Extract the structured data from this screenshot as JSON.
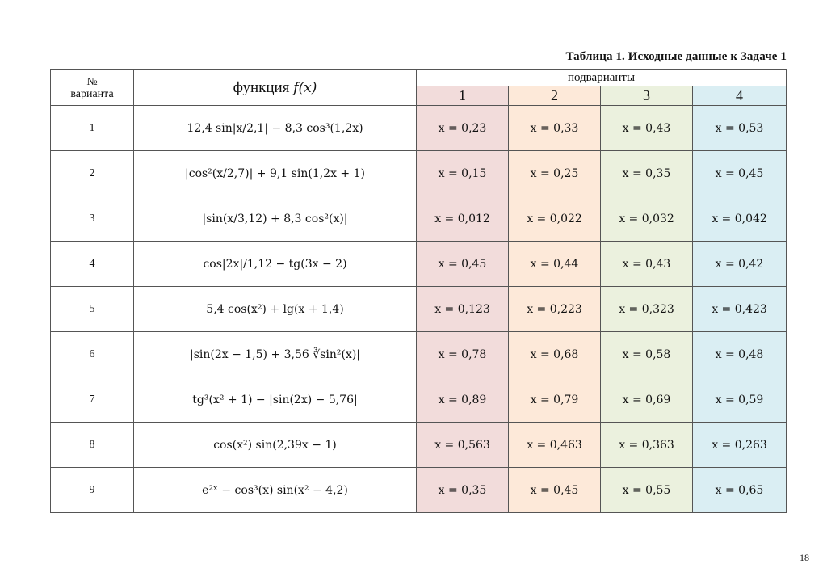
{
  "caption": "Таблица 1. Исходные данные к Задаче 1",
  "header": {
    "variant_symbol": "№",
    "variant_label": "варианта",
    "function_label": "функция",
    "function_symbol": "f(x)",
    "subvariants_label": "подварианты",
    "subvariant_numbers": [
      "1",
      "2",
      "3",
      "4"
    ]
  },
  "colors": {
    "col1": "#f2dcdb",
    "col2": "#fde9d9",
    "col3": "#ebf1de",
    "col4": "#daeef3"
  },
  "rows": [
    {
      "n": "1",
      "f": "12,4 sin|x/2,1| − 8,3 cos³(1,2x)",
      "v": [
        "x = 0,23",
        "x = 0,33",
        "x = 0,43",
        "x = 0,53"
      ]
    },
    {
      "n": "2",
      "f": "|cos²(x/2,7)| + 9,1 sin(1,2x + 1)",
      "v": [
        "x = 0,15",
        "x = 0,25",
        "x = 0,35",
        "x = 0,45"
      ]
    },
    {
      "n": "3",
      "f": "|sin(x/3,12) + 8,3 cos²(x)|",
      "v": [
        "x = 0,012",
        "x = 0,022",
        "x = 0,032",
        "x = 0,042"
      ]
    },
    {
      "n": "4",
      "f": "cos|2x|/1,12 − tg(3x − 2)",
      "v": [
        "x = 0,45",
        "x = 0,44",
        "x = 0,43",
        "x = 0,42"
      ]
    },
    {
      "n": "5",
      "f": "5,4 cos(x²) + lg(x + 1,4)",
      "v": [
        "x = 0,123",
        "x = 0,223",
        "x = 0,323",
        "x = 0,423"
      ]
    },
    {
      "n": "6",
      "f": "|sin(2x − 1,5) + 3,56 ∛sin²(x)|",
      "v": [
        "x = 0,78",
        "x = 0,68",
        "x = 0,58",
        "x = 0,48"
      ]
    },
    {
      "n": "7",
      "f": "tg³(x² + 1) − |sin(2x) − 5,76|",
      "v": [
        "x = 0,89",
        "x = 0,79",
        "x = 0,69",
        "x = 0,59"
      ]
    },
    {
      "n": "8",
      "f": "cos(x²) sin(2,39x − 1)",
      "v": [
        "x = 0,563",
        "x = 0,463",
        "x = 0,363",
        "x = 0,263"
      ]
    },
    {
      "n": "9",
      "f": "e²ˣ − cos³(x) sin(x² − 4,2)",
      "v": [
        "x = 0,35",
        "x = 0,45",
        "x = 0,55",
        "x = 0,65"
      ]
    }
  ],
  "page_number": "18"
}
